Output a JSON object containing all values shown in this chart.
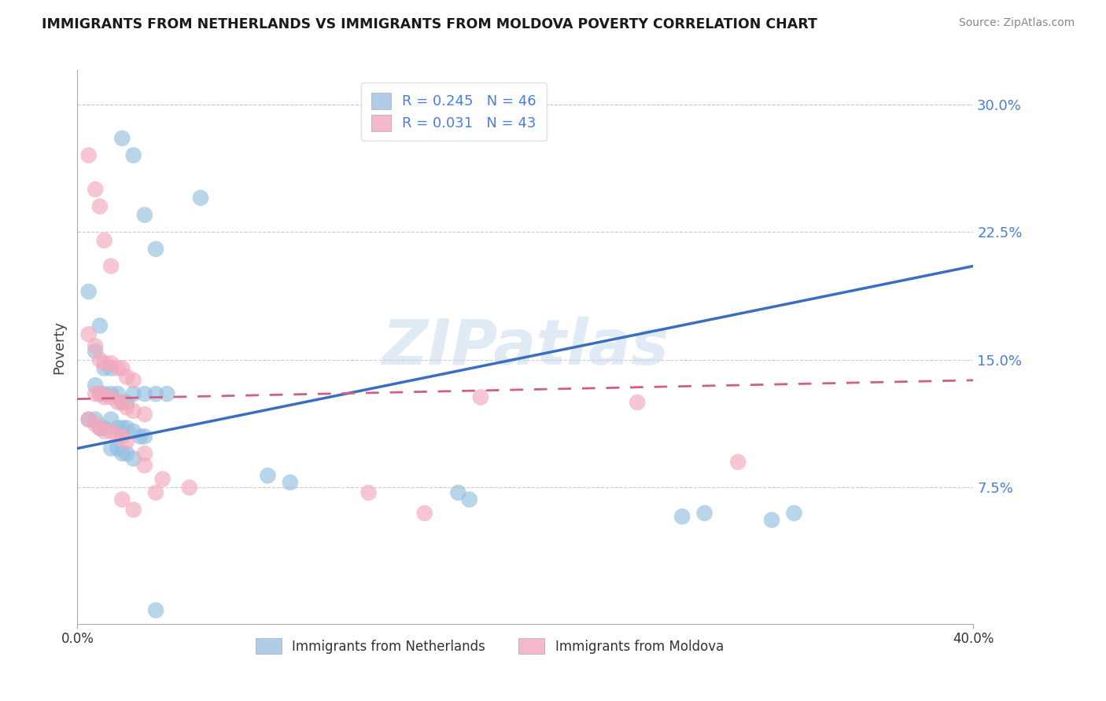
{
  "title": "IMMIGRANTS FROM NETHERLANDS VS IMMIGRANTS FROM MOLDOVA POVERTY CORRELATION CHART",
  "source": "Source: ZipAtlas.com",
  "ylabel": "Poverty",
  "yticks": [
    0.075,
    0.15,
    0.225,
    0.3
  ],
  "ytick_labels": [
    "7.5%",
    "15.0%",
    "22.5%",
    "30.0%"
  ],
  "xlim": [
    0.0,
    0.4
  ],
  "ylim": [
    -0.005,
    0.32
  ],
  "watermark": "ZIPatlas",
  "nl_color": "#92bfe0",
  "md_color": "#f4a8bc",
  "nl_line_color": "#3a6fbf",
  "md_line_color": "#d06080",
  "nl_R": 0.245,
  "md_R": 0.031,
  "nl_N": 46,
  "md_N": 43,
  "nl_scatter_x": [
    0.02,
    0.025,
    0.03,
    0.035,
    0.055,
    0.005,
    0.01,
    0.008,
    0.012,
    0.015,
    0.008,
    0.01,
    0.012,
    0.015,
    0.018,
    0.02,
    0.022,
    0.025,
    0.03,
    0.035,
    0.04,
    0.005,
    0.008,
    0.01,
    0.012,
    0.015,
    0.018,
    0.02,
    0.022,
    0.025,
    0.028,
    0.03,
    0.015,
    0.018,
    0.02,
    0.022,
    0.025,
    0.085,
    0.095,
    0.17,
    0.175,
    0.28,
    0.32,
    0.27,
    0.31,
    0.035
  ],
  "nl_scatter_y": [
    0.28,
    0.27,
    0.235,
    0.215,
    0.245,
    0.19,
    0.17,
    0.155,
    0.145,
    0.145,
    0.135,
    0.13,
    0.13,
    0.13,
    0.13,
    0.125,
    0.125,
    0.13,
    0.13,
    0.13,
    0.13,
    0.115,
    0.115,
    0.11,
    0.11,
    0.115,
    0.11,
    0.11,
    0.11,
    0.108,
    0.105,
    0.105,
    0.098,
    0.098,
    0.095,
    0.095,
    0.092,
    0.082,
    0.078,
    0.072,
    0.068,
    0.06,
    0.06,
    0.058,
    0.056,
    0.003
  ],
  "md_scatter_x": [
    0.005,
    0.008,
    0.01,
    0.012,
    0.015,
    0.005,
    0.008,
    0.01,
    0.012,
    0.015,
    0.018,
    0.02,
    0.022,
    0.025,
    0.008,
    0.01,
    0.012,
    0.015,
    0.018,
    0.02,
    0.022,
    0.025,
    0.03,
    0.005,
    0.008,
    0.01,
    0.012,
    0.015,
    0.018,
    0.02,
    0.022,
    0.03,
    0.03,
    0.038,
    0.05,
    0.035,
    0.02,
    0.025,
    0.18,
    0.25,
    0.13,
    0.155,
    0.295
  ],
  "md_scatter_y": [
    0.27,
    0.25,
    0.24,
    0.22,
    0.205,
    0.165,
    0.158,
    0.15,
    0.148,
    0.148,
    0.145,
    0.145,
    0.14,
    0.138,
    0.13,
    0.13,
    0.128,
    0.128,
    0.125,
    0.125,
    0.122,
    0.12,
    0.118,
    0.115,
    0.112,
    0.11,
    0.108,
    0.108,
    0.105,
    0.105,
    0.102,
    0.095,
    0.088,
    0.08,
    0.075,
    0.072,
    0.068,
    0.062,
    0.128,
    0.125,
    0.072,
    0.06,
    0.09
  ]
}
